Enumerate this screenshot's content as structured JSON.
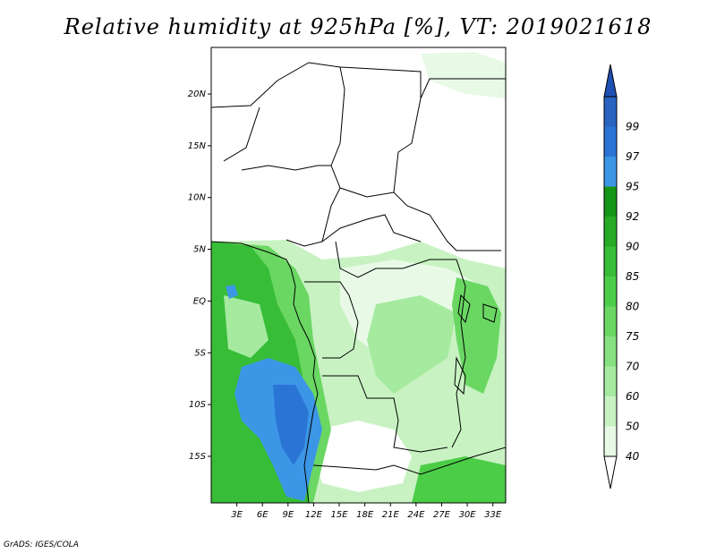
{
  "title": "Relative humidity at 925hPa [%], VT: 2019021618",
  "credit": "GrADS: IGES/COLA",
  "map": {
    "lon_range": [
      0,
      34.5
    ],
    "lat_range": [
      -19.5,
      24.5
    ],
    "lat_ticks": [
      {
        "value": 20,
        "label": "20N"
      },
      {
        "value": 15,
        "label": "15N"
      },
      {
        "value": 10,
        "label": "10N"
      },
      {
        "value": 5,
        "label": "5N"
      },
      {
        "value": 0,
        "label": "EQ"
      },
      {
        "value": -5,
        "label": "5S"
      },
      {
        "value": -10,
        "label": "10S"
      },
      {
        "value": -15,
        "label": "15S"
      }
    ],
    "lon_ticks": [
      {
        "value": 3,
        "label": "3E"
      },
      {
        "value": 6,
        "label": "6E"
      },
      {
        "value": 9,
        "label": "9E"
      },
      {
        "value": 12,
        "label": "12E"
      },
      {
        "value": 15,
        "label": "15E"
      },
      {
        "value": 18,
        "label": "18E"
      },
      {
        "value": 21,
        "label": "21E"
      },
      {
        "value": 24,
        "label": "24E"
      },
      {
        "value": 27,
        "label": "27E"
      },
      {
        "value": 30,
        "label": "30E"
      },
      {
        "value": 33,
        "label": "33E"
      }
    ]
  },
  "colorbar": {
    "levels": [
      {
        "label": "40",
        "color": "#e8fae6"
      },
      {
        "label": "50",
        "color": "#c8f2c2"
      },
      {
        "label": "60",
        "color": "#a6eaa0"
      },
      {
        "label": "70",
        "color": "#86e180"
      },
      {
        "label": "75",
        "color": "#6ad763"
      },
      {
        "label": "80",
        "color": "#4ccd48"
      },
      {
        "label": "85",
        "color": "#37bd37"
      },
      {
        "label": "90",
        "color": "#27ab27"
      },
      {
        "label": "92",
        "color": "#169616"
      },
      {
        "label": "95",
        "color": "#3c96e6"
      },
      {
        "label": "97",
        "color": "#2a74d6"
      },
      {
        "label": "99",
        "color": "#2864c0"
      }
    ],
    "below_color": "#ffffff",
    "above_color": "#1e50b4"
  }
}
